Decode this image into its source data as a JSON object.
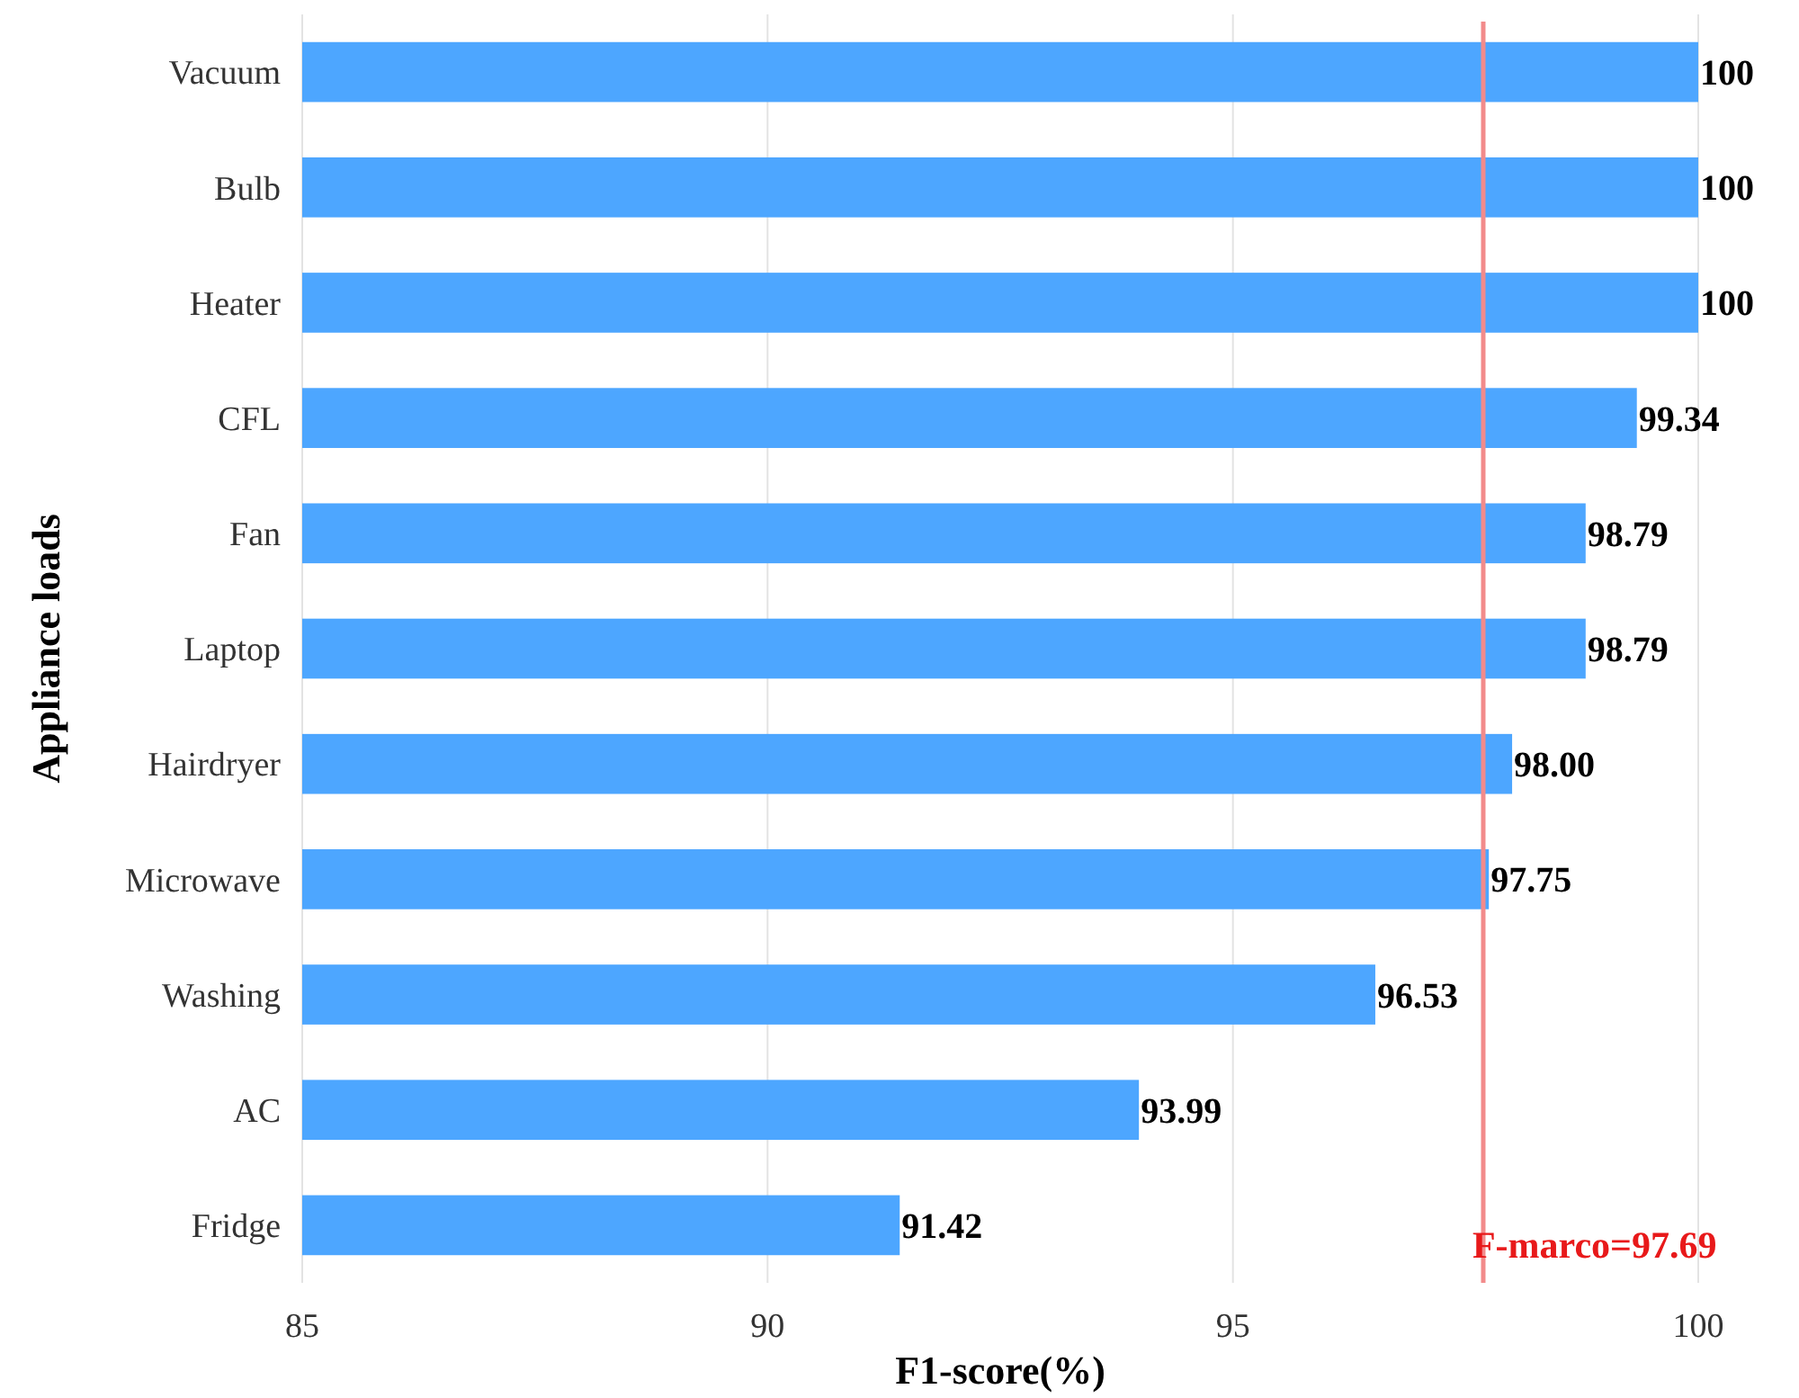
{
  "chart_data": {
    "type": "bar",
    "orientation": "horizontal",
    "xlabel": "F1-score(%)",
    "ylabel": "Appliance loads",
    "categories": [
      "Vacuum",
      "Bulb",
      "Heater",
      "CFL",
      "Fan",
      "Laptop",
      "Hairdryer",
      "Microwave",
      "Washing",
      "AC",
      "Fridge"
    ],
    "values": [
      100,
      100,
      100,
      99.34,
      98.79,
      98.79,
      98.0,
      97.75,
      96.53,
      93.99,
      91.42
    ],
    "value_labels": [
      "100",
      "100",
      "100",
      "99.34",
      "98.79",
      "98.79",
      "98.00",
      "97.75",
      "96.53",
      "93.99",
      "91.42"
    ],
    "color": "#4da6ff",
    "xlim": [
      85,
      100
    ],
    "xticks": [
      85,
      90,
      95,
      100
    ],
    "grid": "x",
    "ref_lines": [
      {
        "axis": "x",
        "value": 97.69,
        "label": "F-marco=97.69",
        "color": "#f28b8b"
      }
    ]
  }
}
